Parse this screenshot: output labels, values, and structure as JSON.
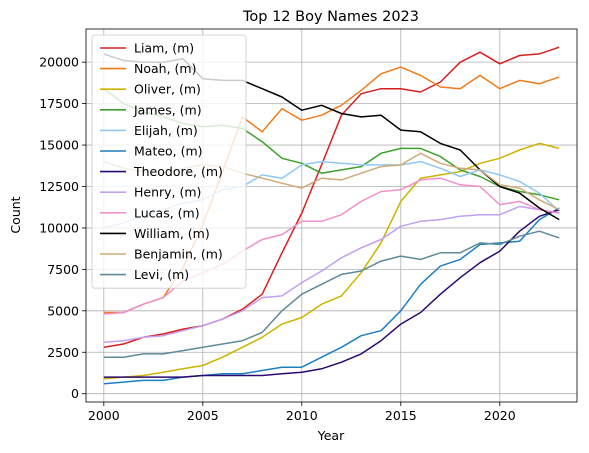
{
  "chart_data": {
    "type": "line",
    "title": "Top 12 Boy Names 2023",
    "xlabel": "Year",
    "ylabel": "Count",
    "xlim": [
      1999.1,
      2023.9
    ],
    "ylim": [
      -500,
      22000
    ],
    "xticks": [
      2000,
      2005,
      2010,
      2015,
      2020
    ],
    "yticks": [
      0,
      2500,
      5000,
      7500,
      10000,
      12500,
      15000,
      17500,
      20000
    ],
    "grid": true,
    "legend_position": "upper-left",
    "x": [
      2000,
      2001,
      2002,
      2003,
      2004,
      2005,
      2006,
      2007,
      2008,
      2009,
      2010,
      2011,
      2012,
      2013,
      2014,
      2015,
      2016,
      2017,
      2018,
      2019,
      2020,
      2021,
      2022,
      2023
    ],
    "series": [
      {
        "name": "Liam, (m)",
        "color": "#d62020",
        "values": [
          2800,
          3000,
          3400,
          3600,
          3900,
          4100,
          4500,
          5100,
          6000,
          8500,
          10900,
          13800,
          16800,
          18100,
          18400,
          18400,
          18200,
          18800,
          20000,
          20600,
          19900,
          20400,
          20500,
          20900
        ]
      },
      {
        "name": "Noah, (m)",
        "color": "#f07b1a",
        "values": [
          4900,
          4900,
          5400,
          5800,
          7600,
          10200,
          13400,
          16700,
          15800,
          17200,
          16500,
          16800,
          17400,
          18300,
          19300,
          19700,
          19200,
          18500,
          18400,
          19200,
          18400,
          18900,
          18700,
          19100
        ]
      },
      {
        "name": "Oliver, (m)",
        "color": "#ccb400",
        "values": [
          900,
          1000,
          1100,
          1300,
          1500,
          1700,
          2200,
          2800,
          3400,
          4200,
          4600,
          5400,
          5900,
          7300,
          9100,
          11600,
          13000,
          13200,
          13400,
          13900,
          14200,
          14700,
          15100,
          14800
        ]
      },
      {
        "name": "James, (m)",
        "color": "#3ca02a",
        "values": [
          18400,
          17500,
          17000,
          16700,
          16300,
          16100,
          16200,
          16000,
          15200,
          14200,
          13900,
          13300,
          13500,
          13700,
          14500,
          14800,
          14800,
          14300,
          13500,
          13100,
          12500,
          12200,
          12000,
          11700
        ]
      },
      {
        "name": "Elijah, (m)",
        "color": "#90c8f0",
        "values": [
          10000,
          10300,
          10700,
          11100,
          11500,
          11700,
          12300,
          12500,
          13200,
          13000,
          13800,
          14000,
          13900,
          13800,
          13800,
          13800,
          14000,
          13600,
          13100,
          13500,
          13200,
          12800,
          12100,
          11000
        ]
      },
      {
        "name": "Mateo, (m)",
        "color": "#1f7fc0",
        "values": [
          600,
          700,
          800,
          800,
          1000,
          1100,
          1200,
          1200,
          1400,
          1600,
          1600,
          2200,
          2800,
          3500,
          3800,
          5000,
          6600,
          7700,
          8100,
          9000,
          9100,
          9200,
          10500,
          11200
        ]
      },
      {
        "name": "Theodore, (m)",
        "color": "#2a0a70",
        "values": [
          1000,
          1000,
          1000,
          1000,
          1000,
          1100,
          1100,
          1100,
          1100,
          1200,
          1300,
          1500,
          1900,
          2400,
          3200,
          4200,
          4900,
          6000,
          7000,
          7900,
          8600,
          9800,
          10700,
          11100
        ]
      },
      {
        "name": "Henry, (m)",
        "color": "#c0a0f0",
        "values": [
          3100,
          3200,
          3400,
          3500,
          3800,
          4100,
          4500,
          5000,
          5800,
          5900,
          6700,
          7400,
          8200,
          8800,
          9300,
          10100,
          10400,
          10500,
          10700,
          10800,
          10800,
          11300,
          11100,
          10900
        ]
      },
      {
        "name": "Lucas, (m)",
        "color": "#f090c8",
        "values": [
          4800,
          4900,
          5400,
          5800,
          6800,
          7300,
          7800,
          8600,
          9300,
          9600,
          10400,
          10400,
          10800,
          11600,
          12200,
          12300,
          12900,
          13000,
          12600,
          12500,
          11400,
          11600,
          11100,
          10900
        ]
      },
      {
        "name": "William, (m)",
        "color": "#000000",
        "values": [
          20500,
          20100,
          20000,
          20000,
          20200,
          19000,
          18900,
          18900,
          18400,
          17900,
          17100,
          17400,
          16900,
          16700,
          16800,
          15900,
          15800,
          15100,
          14700,
          13500,
          12500,
          12100,
          11200,
          10500
        ]
      },
      {
        "name": "Benjamin, (m)",
        "color": "#d0aa7a",
        "values": [
          14000,
          13600,
          13400,
          13300,
          13600,
          13800,
          13700,
          13300,
          13000,
          12700,
          12400,
          13000,
          12900,
          13300,
          13700,
          13800,
          14500,
          13900,
          13600,
          13500,
          12600,
          12400,
          11700,
          11100
        ]
      },
      {
        "name": "Levi, (m)",
        "color": "#5f8a98",
        "values": [
          2200,
          2200,
          2400,
          2400,
          2600,
          2800,
          3000,
          3200,
          3700,
          5000,
          6000,
          6600,
          7200,
          7400,
          8000,
          8300,
          8100,
          8500,
          8500,
          9100,
          9000,
          9500,
          9800,
          9400
        ]
      }
    ]
  }
}
